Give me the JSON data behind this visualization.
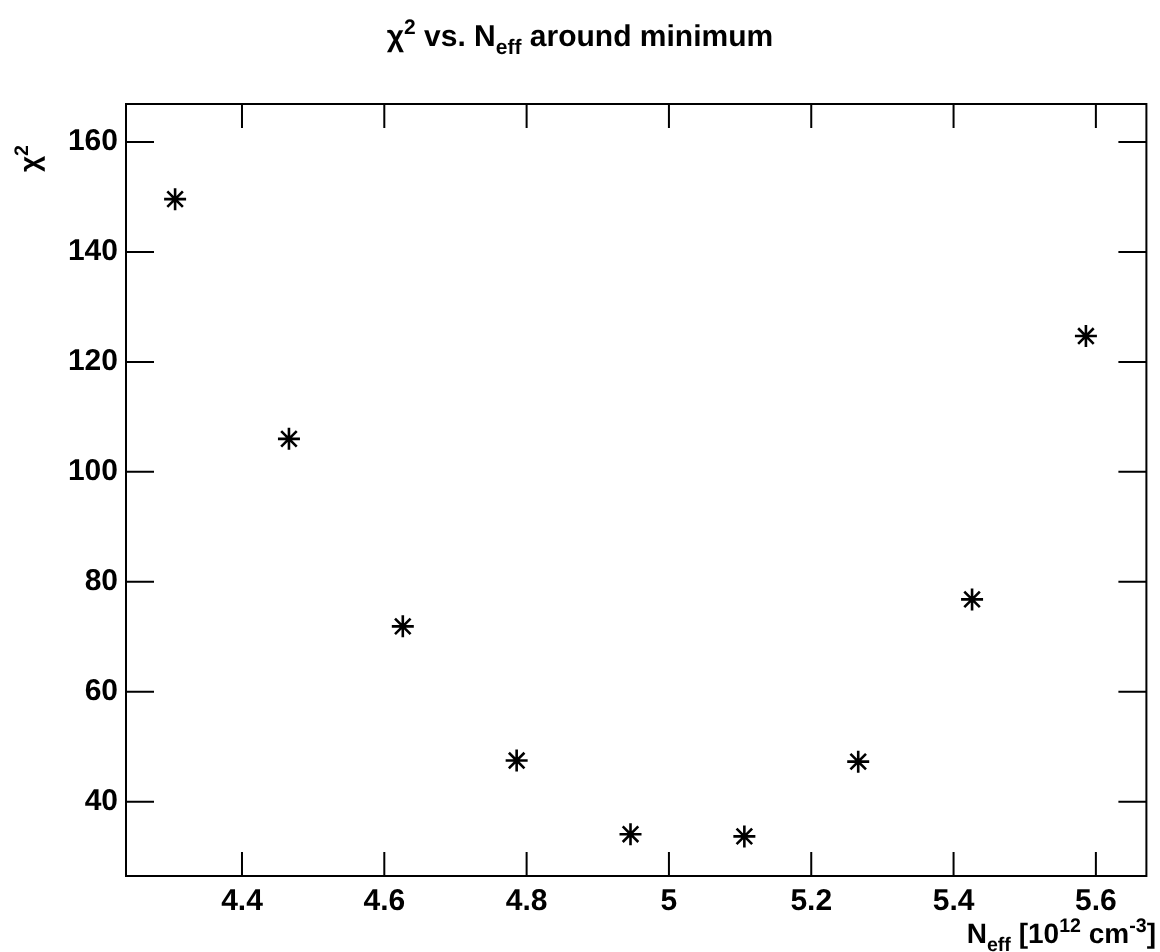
{
  "chart_data": {
    "type": "scatter",
    "title": "χ$^{2}$ vs. N$_{eff}$ around minimum",
    "xlabel": "N$_{eff}$ [10$^{12}$ cm$^{-3}$]",
    "ylabel": "χ$^{2}$",
    "x": [
      4.306,
      4.466,
      4.626,
      4.786,
      4.946,
      5.106,
      5.266,
      5.426,
      5.586
    ],
    "series": [
      {
        "color": "#000000",
        "values": [
          149.6,
          106,
          71.9,
          47.5,
          34.1,
          33.7,
          47.3,
          76.8,
          124.7
        ]
      }
    ],
    "xlim": [
      4.237,
      5.671
    ],
    "ylim": [
      26.5,
      166.9
    ],
    "xticks": [
      {
        "value": 4.4,
        "label": "4.4"
      },
      {
        "value": 4.6,
        "label": "4.6"
      },
      {
        "value": 4.8,
        "label": "4.8"
      },
      {
        "value": 5,
        "label": "5"
      },
      {
        "value": 5.2,
        "label": "5.2"
      },
      {
        "value": 5.4,
        "label": "5.4"
      },
      {
        "value": 5.6,
        "label": "5.6"
      }
    ],
    "yticks": [
      40,
      60,
      80,
      100,
      120,
      140,
      160
    ],
    "grid": false,
    "legend": false,
    "marker": "cross"
  }
}
